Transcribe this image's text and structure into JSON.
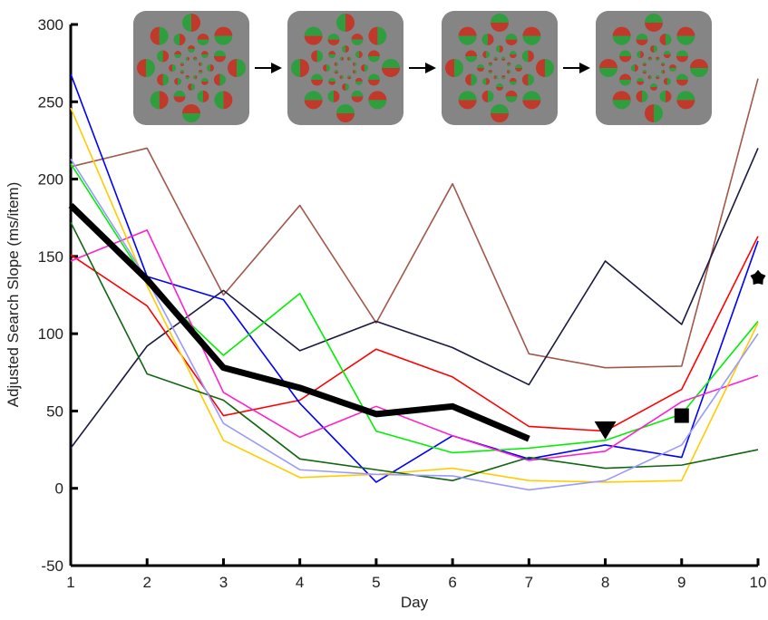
{
  "chart_data": {
    "type": "line",
    "x_label": "Day",
    "y_label": "Adjusted Search Slope (ms/item)",
    "x": [
      1,
      2,
      3,
      4,
      5,
      6,
      7,
      8,
      9,
      10
    ],
    "xlim": [
      1,
      10
    ],
    "xticks": [
      1,
      2,
      3,
      4,
      5,
      6,
      7,
      8,
      9,
      10
    ],
    "ylim": [
      -50,
      300
    ],
    "yticks": [
      -50,
      0,
      50,
      100,
      150,
      200,
      250,
      300
    ],
    "series": [
      {
        "color": "#a0584a",
        "values": [
          208,
          220,
          125,
          183,
          107,
          197,
          87,
          78,
          79,
          265
        ]
      },
      {
        "color": "#1a1a40",
        "values": [
          26,
          92,
          128,
          89,
          108,
          91,
          67,
          147,
          106,
          220
        ]
      },
      {
        "color": "#ff0000",
        "values": [
          151,
          118,
          47,
          57,
          90,
          72,
          40,
          37,
          64,
          163
        ]
      },
      {
        "color": "#0000ff",
        "values": [
          268,
          137,
          122,
          55,
          4,
          34,
          19,
          28,
          20,
          160
        ]
      },
      {
        "color": "#00ee00",
        "values": [
          210,
          133,
          86,
          126,
          37,
          23,
          26,
          31,
          48,
          108
        ]
      },
      {
        "color": "#ff22cc",
        "values": [
          147,
          167,
          62,
          33,
          53,
          34,
          18,
          24,
          56,
          73
        ]
      },
      {
        "color": "#ffcc00",
        "values": [
          246,
          131,
          31,
          7,
          9,
          13,
          5,
          4,
          5,
          107
        ]
      },
      {
        "color": "#116611",
        "values": [
          172,
          74,
          57,
          19,
          12,
          5,
          20,
          13,
          15,
          25
        ]
      },
      {
        "color": "#9999ff",
        "values": [
          213,
          135,
          42,
          12,
          9,
          8,
          -1,
          5,
          28,
          100
        ]
      },
      {
        "color": "#000000",
        "width": 7,
        "values": [
          183,
          135,
          78,
          65,
          48,
          53,
          32,
          null,
          null,
          null
        ]
      }
    ],
    "markers": [
      {
        "x": 8,
        "value": 38,
        "shape": "triangle",
        "color": "#000000"
      },
      {
        "x": 9,
        "value": 47,
        "shape": "square",
        "color": "#000000"
      },
      {
        "x": 10,
        "value": 136,
        "shape": "flower",
        "color": "#000000"
      }
    ]
  }
}
